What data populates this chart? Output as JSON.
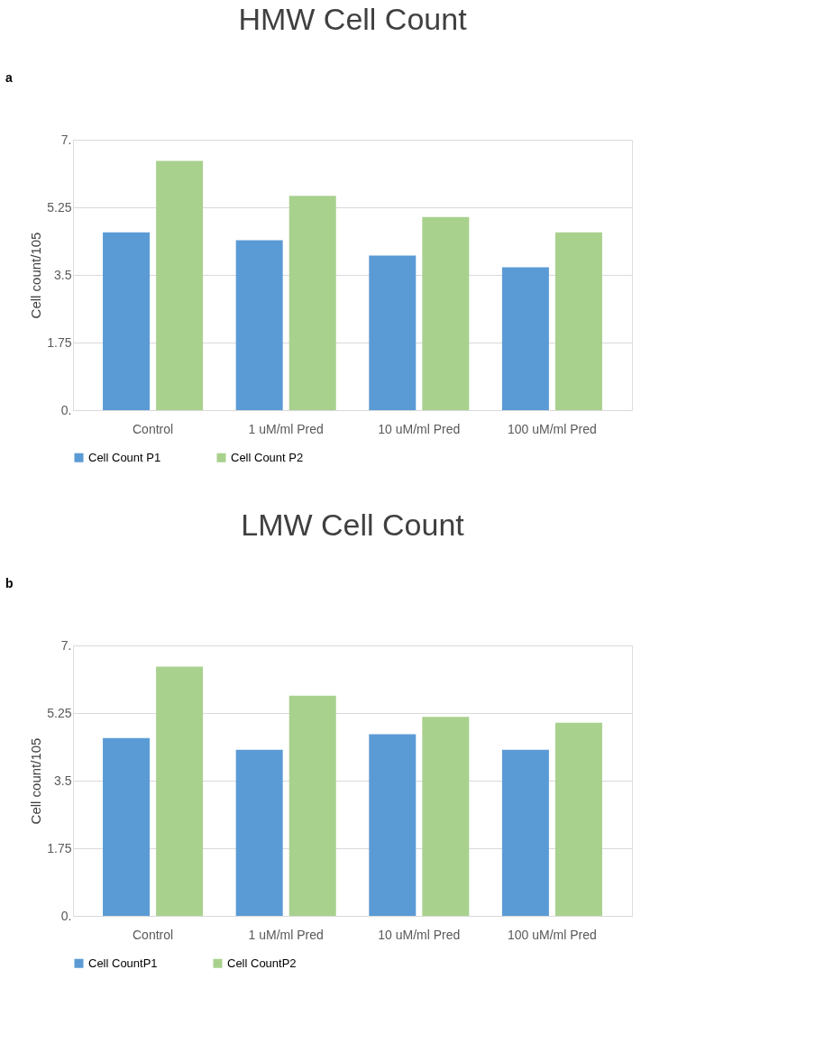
{
  "chart_data": [
    {
      "type": "bar",
      "title": "HMW Cell Count",
      "ylabel": "Cell count/105",
      "annotations": [
        "a"
      ],
      "categories": [
        "Control",
        "1 uM/ml Pred",
        "10 uM/ml Pred",
        "100 uM/ml Pred"
      ],
      "series": [
        {
          "name": "Cell Count P1",
          "color": "#5b9bd5",
          "values": [
            4.6,
            4.4,
            4.0,
            3.7
          ]
        },
        {
          "name": "Cell Count P2",
          "color": "#a9d18e",
          "values": [
            6.45,
            5.55,
            5.0,
            4.6
          ]
        }
      ],
      "ylim": [
        0,
        7
      ],
      "yticks": [
        {
          "value": 0,
          "label": "0."
        },
        1.75,
        3.5,
        5.25,
        {
          "value": 7,
          "label": "7."
        }
      ],
      "grid": "y",
      "legend": "bottom"
    },
    {
      "type": "bar",
      "title": "LMW Cell Count",
      "ylabel": "Cell count/105",
      "annotations": [
        "b"
      ],
      "categories": [
        "Control",
        "1 uM/ml Pred",
        "10 uM/ml Pred",
        "100 uM/ml Pred"
      ],
      "series": [
        {
          "name": "Cell CountP1",
          "color": "#5b9bd5",
          "values": [
            4.6,
            4.3,
            4.7,
            4.3
          ]
        },
        {
          "name": "Cell CountP2",
          "color": "#a9d18e",
          "values": [
            6.45,
            5.7,
            5.15,
            5.0
          ]
        }
      ],
      "ylim": [
        0,
        7
      ],
      "yticks": [
        {
          "value": 0,
          "label": "0."
        },
        1.75,
        3.5,
        5.25,
        {
          "value": 7,
          "label": "7."
        }
      ],
      "grid": "y",
      "legend": "bottom"
    }
  ]
}
